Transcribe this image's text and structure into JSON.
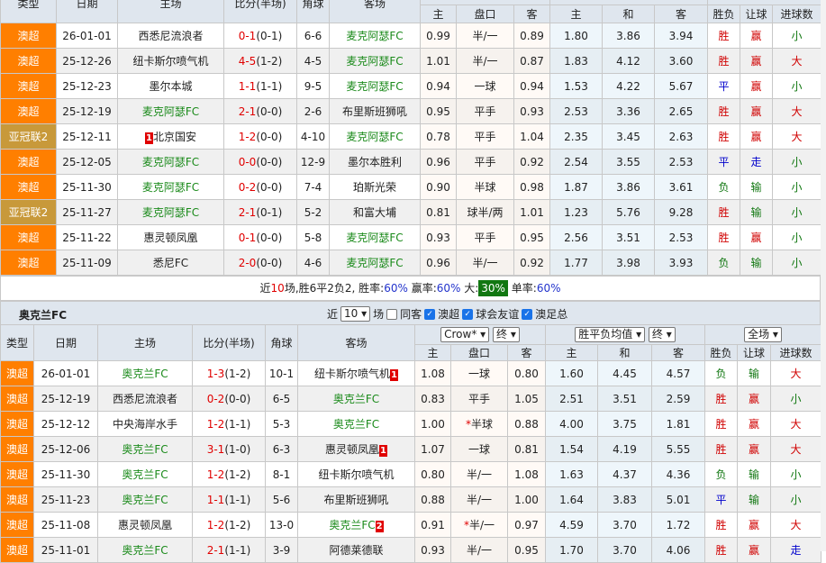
{
  "table1": {
    "headers": {
      "type": "类型",
      "date": "日期",
      "home": "主场",
      "score": "比分(半场)",
      "corner": "角球",
      "away": "客场"
    },
    "sub_headers": [
      "主",
      "盘口",
      "客",
      "主",
      "和",
      "客",
      "胜负",
      "让球",
      "进球数"
    ],
    "rows": [
      {
        "type": "澳超",
        "league": "aleague",
        "date": "26-01-01",
        "home": "西悉尼流浪者",
        "score": "0-1",
        "half": "(0-1)",
        "corner": "6-6",
        "away": "麦克阿瑟FC",
        "hl": "away",
        "h1": "0.99",
        "hcap": "半/一",
        "h2": "0.89",
        "o1": "1.80",
        "ox": "3.86",
        "o2": "3.94",
        "res": "胜",
        "ah": "赢",
        "ou": "小"
      },
      {
        "type": "澳超",
        "league": "aleague",
        "date": "25-12-26",
        "home": "纽卡斯尔喷气机",
        "score": "4-5",
        "half": "(1-2)",
        "corner": "4-5",
        "away": "麦克阿瑟FC",
        "hl": "away",
        "h1": "1.01",
        "hcap": "半/一",
        "h2": "0.87",
        "o1": "1.83",
        "ox": "4.12",
        "o2": "3.60",
        "res": "胜",
        "ah": "赢",
        "ou": "大"
      },
      {
        "type": "澳超",
        "league": "aleague",
        "date": "25-12-23",
        "home": "墨尔本城",
        "score": "1-1",
        "half": "(1-1)",
        "corner": "9-5",
        "away": "麦克阿瑟FC",
        "hl": "away",
        "h1": "0.94",
        "hcap": "一球",
        "h2": "0.94",
        "o1": "1.53",
        "ox": "4.22",
        "o2": "5.67",
        "res": "平",
        "ah": "赢",
        "ou": "小"
      },
      {
        "type": "澳超",
        "league": "aleague",
        "date": "25-12-19",
        "home": "麦克阿瑟FC",
        "score": "2-1",
        "half": "(0-0)",
        "corner": "2-6",
        "away": "布里斯班狮吼",
        "hl": "home",
        "h1": "0.95",
        "hcap": "平手",
        "h2": "0.93",
        "o1": "2.53",
        "ox": "3.36",
        "o2": "2.65",
        "res": "胜",
        "ah": "赢",
        "ou": "大"
      },
      {
        "type": "亚冠联2",
        "league": "acl",
        "date": "25-12-11",
        "home": "北京国安",
        "home_card": "1",
        "score": "1-2",
        "half": "(0-0)",
        "corner": "4-10",
        "away": "麦克阿瑟FC",
        "hl": "away",
        "h1": "0.78",
        "hcap": "平手",
        "h2": "1.04",
        "o1": "2.35",
        "ox": "3.45",
        "o2": "2.63",
        "res": "胜",
        "ah": "赢",
        "ou": "大"
      },
      {
        "type": "澳超",
        "league": "aleague",
        "date": "25-12-05",
        "home": "麦克阿瑟FC",
        "score": "0-0",
        "half": "(0-0)",
        "corner": "12-9",
        "away": "墨尔本胜利",
        "hl": "home",
        "h1": "0.96",
        "hcap": "平手",
        "h2": "0.92",
        "o1": "2.54",
        "ox": "3.55",
        "o2": "2.53",
        "res": "平",
        "ah": "走",
        "ou": "小"
      },
      {
        "type": "澳超",
        "league": "aleague",
        "date": "25-11-30",
        "home": "麦克阿瑟FC",
        "score": "0-2",
        "half": "(0-0)",
        "corner": "7-4",
        "away": "珀斯光荣",
        "hl": "home",
        "h1": "0.90",
        "hcap": "半球",
        "h2": "0.98",
        "o1": "1.87",
        "ox": "3.86",
        "o2": "3.61",
        "res": "负",
        "ah": "输",
        "ou": "小"
      },
      {
        "type": "亚冠联2",
        "league": "acl",
        "date": "25-11-27",
        "home": "麦克阿瑟FC",
        "score": "2-1",
        "half": "(0-1)",
        "corner": "5-2",
        "away": "和富大埔",
        "hl": "home",
        "h1": "0.81",
        "hcap": "球半/两",
        "h2": "1.01",
        "o1": "1.23",
        "ox": "5.76",
        "o2": "9.28",
        "res": "胜",
        "ah": "输",
        "ou": "小"
      },
      {
        "type": "澳超",
        "league": "aleague",
        "date": "25-11-22",
        "home": "惠灵顿凤凰",
        "score": "0-1",
        "half": "(0-0)",
        "corner": "5-8",
        "away": "麦克阿瑟FC",
        "hl": "away",
        "h1": "0.93",
        "hcap": "平手",
        "h2": "0.95",
        "o1": "2.56",
        "ox": "3.51",
        "o2": "2.53",
        "res": "胜",
        "ah": "赢",
        "ou": "小"
      },
      {
        "type": "澳超",
        "league": "aleague",
        "date": "25-11-09",
        "home": "悉尼FC",
        "score": "2-0",
        "half": "(0-0)",
        "corner": "4-6",
        "away": "麦克阿瑟FC",
        "hl": "away",
        "h1": "0.96",
        "hcap": "半/一",
        "h2": "0.92",
        "o1": "1.77",
        "ox": "3.98",
        "o2": "3.93",
        "res": "负",
        "ah": "输",
        "ou": "小"
      }
    ]
  },
  "summary": {
    "p1": "近",
    "games": "10",
    "p2": "场,胜6平2负2, 胜率:",
    "win_rate": "60%",
    "p3": " 赢率:",
    "ah_rate": "60%",
    "p4": " 大:",
    "big_rate": "30%",
    "p5": " 单率:",
    "odd_rate": "60%"
  },
  "section2": {
    "title": "奥克兰FC",
    "near_label": "近",
    "count_value": "10",
    "games_label": "场",
    "same_label": "同客",
    "same_checked": false,
    "filters": [
      {
        "label": "澳超",
        "checked": true
      },
      {
        "label": "球会友谊",
        "checked": true
      },
      {
        "label": "澳足总",
        "checked": true
      }
    ],
    "company_select": "Crow*",
    "handicap_time_select": "终",
    "odds_select": "胜平负均值",
    "odds_time_select": "终",
    "scope_select": "全场"
  },
  "table2": {
    "headers": {
      "type": "类型",
      "date": "日期",
      "home": "主场",
      "score": "比分(半场)",
      "corner": "角球",
      "away": "客场"
    },
    "sub_headers": [
      "主",
      "盘口",
      "客",
      "主",
      "和",
      "客",
      "胜负",
      "让球",
      "进球数"
    ],
    "rows": [
      {
        "type": "澳超",
        "league": "aleague",
        "date": "26-01-01",
        "home": "奥克兰FC",
        "score": "1-3",
        "half": "(1-2)",
        "corner": "10-1",
        "away": "纽卡斯尔喷气机",
        "away_card": "1",
        "hl": "home",
        "h1": "1.08",
        "hcap": "一球",
        "h2": "0.80",
        "o1": "1.60",
        "ox": "4.45",
        "o2": "4.57",
        "res": "负",
        "ah": "输",
        "ou": "大"
      },
      {
        "type": "澳超",
        "league": "aleague",
        "date": "25-12-19",
        "home": "西悉尼流浪者",
        "score": "0-2",
        "half": "(0-0)",
        "corner": "6-5",
        "away": "奥克兰FC",
        "hl": "away",
        "h1": "0.83",
        "hcap": "平手",
        "h2": "1.05",
        "o1": "2.51",
        "ox": "3.51",
        "o2": "2.59",
        "res": "胜",
        "ah": "赢",
        "ou": "小"
      },
      {
        "type": "澳超",
        "league": "aleague",
        "date": "25-12-12",
        "home": "中央海岸水手",
        "score": "1-2",
        "half": "(1-1)",
        "corner": "5-3",
        "away": "奥克兰FC",
        "hl": "away",
        "h1": "1.00",
        "hcap": "半球",
        "hcap_star": "*",
        "h2": "0.88",
        "o1": "4.00",
        "ox": "3.75",
        "o2": "1.81",
        "res": "胜",
        "ah": "赢",
        "ou": "大"
      },
      {
        "type": "澳超",
        "league": "aleague",
        "date": "25-12-06",
        "home": "奥克兰FC",
        "score": "3-1",
        "half": "(1-0)",
        "corner": "6-3",
        "away": "惠灵顿凤凰",
        "away_card": "1",
        "hl": "home",
        "h1": "1.07",
        "hcap": "一球",
        "h2": "0.81",
        "o1": "1.54",
        "ox": "4.19",
        "o2": "5.55",
        "res": "胜",
        "ah": "赢",
        "ou": "大"
      },
      {
        "type": "澳超",
        "league": "aleague",
        "date": "25-11-30",
        "home": "奥克兰FC",
        "score": "1-2",
        "half": "(1-2)",
        "corner": "8-1",
        "away": "纽卡斯尔喷气机",
        "hl": "home",
        "h1": "0.80",
        "hcap": "半/一",
        "h2": "1.08",
        "o1": "1.63",
        "ox": "4.37",
        "o2": "4.36",
        "res": "负",
        "ah": "输",
        "ou": "小"
      },
      {
        "type": "澳超",
        "league": "aleague",
        "date": "25-11-23",
        "home": "奥克兰FC",
        "score": "1-1",
        "half": "(1-1)",
        "corner": "5-6",
        "away": "布里斯班狮吼",
        "hl": "home",
        "h1": "0.88",
        "hcap": "半/一",
        "h2": "1.00",
        "o1": "1.64",
        "ox": "3.83",
        "o2": "5.01",
        "res": "平",
        "ah": "输",
        "ou": "小"
      },
      {
        "type": "澳超",
        "league": "aleague",
        "date": "25-11-08",
        "home": "惠灵顿凤凰",
        "score": "1-2",
        "half": "(1-2)",
        "corner": "13-0",
        "away": "奥克兰FC",
        "away_card": "2",
        "hl": "away",
        "h1": "0.91",
        "hcap": "半/一",
        "hcap_star": "*",
        "h2": "0.97",
        "o1": "4.59",
        "ox": "3.70",
        "o2": "1.72",
        "res": "胜",
        "ah": "赢",
        "ou": "大"
      },
      {
        "type": "澳超",
        "league": "aleague",
        "date": "25-11-01",
        "home": "奥克兰FC",
        "score": "2-1",
        "half": "(1-1)",
        "corner": "3-9",
        "away": "阿德莱德联",
        "hl": "home",
        "h1": "0.93",
        "hcap": "半/一",
        "h2": "0.95",
        "o1": "1.70",
        "ox": "3.70",
        "o2": "4.06",
        "res": "胜",
        "ah": "赢",
        "ou": "走"
      }
    ]
  },
  "colors": {
    "aleague": "#ff7f00",
    "acl": "#c8993a",
    "highlight_team": "#1a8a1a",
    "score": "#e00000",
    "win": "#d00000",
    "draw": "#0000cc",
    "loss": "#117711"
  }
}
